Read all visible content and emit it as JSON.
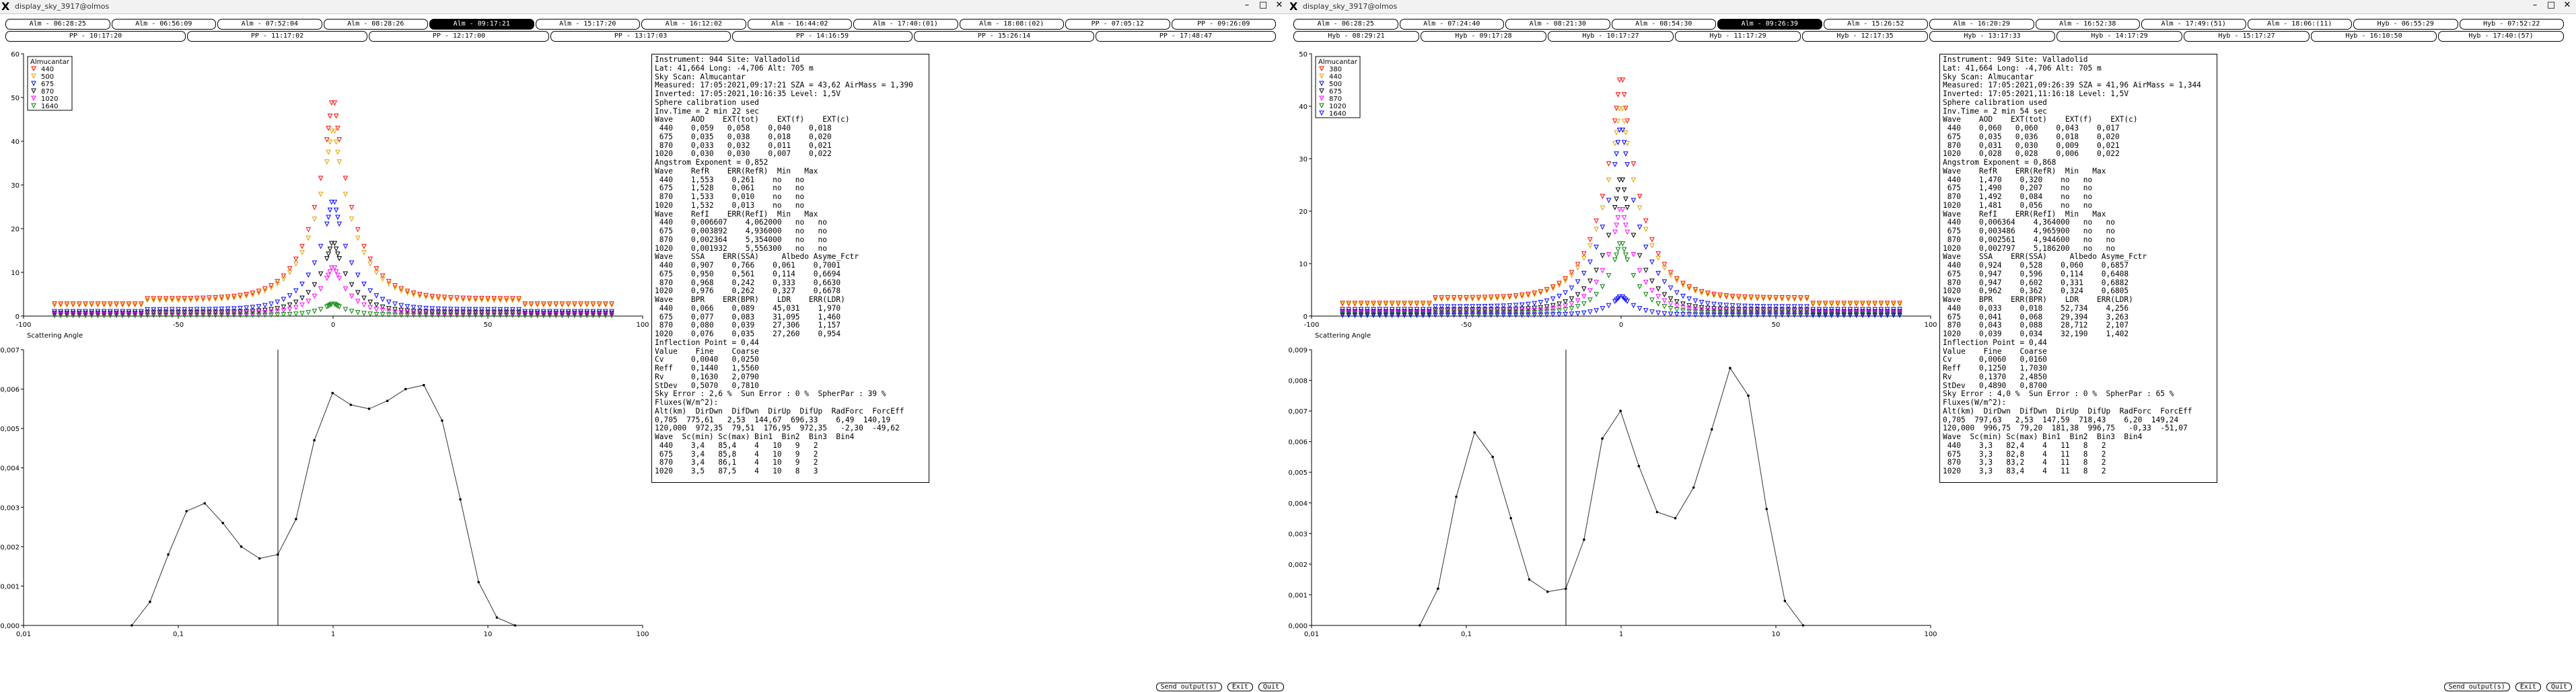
{
  "colors": {
    "440": "#ff0000",
    "500": "#e0a000",
    "675": "#0000ff",
    "870": "#000000",
    "1020": "#ff00ff",
    "1640": "#008000",
    "active_tab_bg": "#000000"
  },
  "windows": [
    {
      "title": "display_sky_3917@olmos",
      "tab_rows": [
        [
          "Alm - 06:28:25",
          "Alm - 06:56:09",
          "Alm - 07:52:04",
          "Alm - 08:28:26",
          "Alm - 09:17:21",
          "Alm - 15:17:20",
          "Alm - 16:12:02",
          "Alm - 16:44:02",
          "Alm - 17:40:(01)",
          "Alm - 18:08:(02)",
          "PP - 07:05:12",
          "PP - 09:26:09"
        ],
        [
          "PP - 10:17:20",
          "PP - 11:17:02",
          "PP - 12:17:00",
          "PP - 13:17:03",
          "PP - 14:16:59",
          "PP - 15:26:14",
          "PP - 17:48:47"
        ]
      ],
      "active_tab": "Alm - 09:17:21",
      "panel_lines": [
        "Instrument: 944 Site: Valladolid",
        "Lat: 41,664 Long: -4,706 Alt: 705 m",
        "Sky Scan: Almucantar",
        "Measured: 17:05:2021,09:17:21 SZA = 43,62 AirMass = 1,390",
        "Inverted: 17:05:2021,10:16:35 Level: 1,5V",
        "Sphere calibration used",
        "Inv.Time = 2 min 22 sec",
        "Wave    AOD    EXT(tot)    EXT(f)    EXT(c)",
        " 440    0,059   0,058    0,040    0,018",
        " 675    0,035   0,038    0,018    0,020",
        " 870    0,033   0,032    0,011    0,021",
        "1020    0,030   0,030    0,007    0,022",
        "Angstrom Exponent = 0,852",
        "Wave    RefR    ERR(RefR)  Min   Max",
        " 440    1,553    0,261    no   no",
        " 675    1,528    0,061    no   no",
        " 870    1,533    0,010    no   no",
        "1020    1,532    0,013    no   no",
        "Wave    RefI    ERR(RefI)  Min   Max",
        " 440    0,006607    4,062000   no   no",
        " 675    0,003892    4,936000   no   no",
        " 870    0,002364    5,354000   no   no",
        "1020    0,001932    5,556300   no   no",
        "Wave    SSA    ERR(SSA)     Albedo Asyme_Fctr",
        " 440    0,907    0,766    0,061    0,7001",
        " 675    0,950    0,561    0,114    0,6694",
        " 870    0,968    0,242    0,333    0,6630",
        "1020    0,976    0,262    0,327    0,6678",
        "Wave    BPR    ERR(BPR)    LDR    ERR(LDR)",
        " 440    0,066    0,089    45,031    1,970",
        " 675    0,077    0,083    31,095    1,460",
        " 870    0,080    0,039    27,306    1,157",
        "1020    0,076    0,035    27,260    0,954",
        "Inflection Point = 0,44",
        "Value    Fine    Coarse",
        "Cv      0,0040   0,0250",
        "Reff    0,1440   1,5560",
        "Rv      0,1630   2,0790",
        "StDev   0,5070   0,7810",
        "Sky Error : 2,6 %  Sun Error : 0 %  SpherPar : 39 %",
        "Fluxes(W/m^2):",
        "Alt(km)  DirDwn  DifDwn  DirUp  DifUp  RadForc  ForcEff",
        "0,705  775,61   2,53  144,67  696,33    6,49  140,19",
        "120,000  972,35  79,51  176,95  972,35   -2,30  -49,62",
        "Wave  Sc(min) Sc(max) Bin1  Bin2  Bin3  Bin4",
        " 440    3,4   85,4    4   10   9   2",
        " 675    3,4   85,8    4   10   9   2",
        " 870    3,4   86,1    4   10   9   2",
        "1020    3,5   87,5    4   10   8   3"
      ],
      "bottom_buttons": [
        "Send output(s)",
        "Exit",
        "Quit"
      ]
    },
    {
      "title": "display_sky_3917@olmos",
      "tab_rows": [
        [
          "Alm - 06:28:25",
          "Alm - 07:24:40",
          "Alm - 08:21:30",
          "Alm - 08:54:30",
          "Alm - 09:26:39",
          "Alm - 15:26:52",
          "Alm - 16:20:29",
          "Alm - 16:52:38",
          "Alm - 17:49:(51)",
          "Alm - 18:06:(11)",
          "Hyb - 06:55:29",
          "Hyb - 07:52:22"
        ],
        [
          "Hyb - 08:29:21",
          "Hyb - 09:17:28",
          "Hyb - 10:17:27",
          "Hyb - 11:17:29",
          "Hyb - 12:17:35",
          "Hyb - 13:17:33",
          "Hyb - 14:17:29",
          "Hyb - 15:17:27",
          "Hyb - 16:10:50",
          "Hyb - 17:40:(57)"
        ]
      ],
      "active_tab": "Alm - 09:26:39",
      "panel_lines": [
        "Instrument: 949 Site: Valladolid",
        "Lat: 41,664 Long: -4,706 Alt: 705 m",
        "Sky Scan: Almucantar",
        "Measured: 17:05:2021,09:26:39 SZA = 41,96 AirMass = 1,344",
        "Inverted: 17:05:2021,11:16:18 Level: 1,5V",
        "Sphere calibration used",
        "Inv.Time = 2 min 54 sec",
        "Wave    AOD    EXT(tot)    EXT(f)    EXT(c)",
        " 440    0,060   0,060    0,043    0,017",
        " 675    0,035   0,036    0,018    0,020",
        " 870    0,031   0,030    0,009    0,021",
        "1020    0,028   0,028    0,006    0,022",
        "Angstrom Exponent = 0,868",
        "Wave    RefR    ERR(RefR)  Min   Max",
        " 440    1,470    0,320    no   no",
        " 675    1,490    0,207    no   no",
        " 870    1,492    0,084    no   no",
        "1020    1,481    0,056    no   no",
        "Wave    RefI    ERR(RefI)  Min   Max",
        " 440    0,006364    4,364000   no   no",
        " 675    0,003486    4,965900   no   no",
        " 870    0,002561    4,944600   no   no",
        "1020    0,002797    5,186200   no   no",
        "Wave    SSA    ERR(SSA)     Albedo Asyme_Fctr",
        " 440    0,924    0,528    0,060    0,6857",
        " 675    0,947    0,596    0,114    0,6408",
        " 870    0,947    0,602    0,331    0,6882",
        "1020    0,962    0,362    0,324    0,6805",
        "Wave    BPR    ERR(BPR)    LDR    ERR(LDR)",
        " 440    0,033    0,018    52,734    4,256",
        " 675    0,041    0,068    29,394    3,263",
        " 870    0,043    0,088    28,712    2,107",
        "1020    0,039    0,034    32,190    1,402",
        "Inflection Point = 0,44",
        "Value    Fine    Coarse",
        "Cv      0,0060   0,0160",
        "Reff    0,1250   1,7030",
        "Rv      0,1370   2,4850",
        "StDev   0,4890   0,8700",
        "Sky Error : 4,0 %  Sun Error : 0 %  SpherPar : 65 %",
        "Fluxes(W/m^2):",
        "Alt(km)  DirDwn  DifDwn  DirUp  DifUp  RadForc  ForcEff",
        "0,705  797,63   2,53  147,59  718,43    6,20  149,24",
        "120,000  996,75  79,20  181,38  996,75   -0,33  -51,07",
        "Wave  Sc(min) Sc(max) Bin1  Bin2  Bin3  Bin4",
        " 440    3,3   82,4    4   11   8   2",
        " 675    3,3   82,8    4   11   8   2",
        " 870    3,3   83,2    4   11   8   2",
        "1020    3,3   83,4    4   11   8   2"
      ],
      "bottom_buttons": [
        "Send output(s)",
        "Exit",
        "Quit"
      ]
    }
  ],
  "chart_data": [
    {
      "type": "scatter",
      "xlabel": "Scattering Angle",
      "ylabel": "",
      "xlim": [
        -100,
        100
      ],
      "ylim": [
        0,
        60
      ],
      "xticks": [
        -100,
        -50,
        0,
        50,
        100
      ],
      "yticks": [
        0,
        10,
        20,
        30,
        40,
        50,
        60
      ],
      "legend_title": "Almucantar",
      "legend_placement": "top-left",
      "series": [
        {
          "name": "440",
          "color": "#ff0000",
          "peak": 52,
          "floor": 4,
          "width": 2.4
        },
        {
          "name": "500",
          "color": "#e0a000",
          "peak": 45,
          "floor": 3.6,
          "width": 2.5
        },
        {
          "name": "675",
          "color": "#0000ff",
          "peak": 28,
          "floor": 1.5,
          "width": 2.2
        },
        {
          "name": "870",
          "color": "#000000",
          "peak": 18,
          "floor": 0.9,
          "width": 2.0
        },
        {
          "name": "1020",
          "color": "#ff00ff",
          "peak": 12,
          "floor": 0.6,
          "width": 1.9
        },
        {
          "name": "1640",
          "color": "#008000",
          "peak": 3,
          "floor": 0.2,
          "width": 1.8
        }
      ]
    },
    {
      "type": "line",
      "xlabel": "",
      "ylabel": "",
      "xscale": "log",
      "xlim": [
        0.01,
        100
      ],
      "ylim": [
        0,
        0.007
      ],
      "xticks": [
        0.01,
        0.1,
        1,
        10,
        100
      ],
      "xticklabels": [
        "0,01",
        "0,1",
        "1",
        "10",
        "100"
      ],
      "yticks": [
        0,
        0.001,
        0.002,
        0.003,
        0.004,
        0.005,
        0.006,
        0.007
      ],
      "yticklabels": [
        "0,000",
        "0,001",
        "0,002",
        "0,003",
        "0,004",
        "0,005",
        "0,006",
        "0,007"
      ],
      "inflection_point": 0.44,
      "x": [
        0.05,
        0.0656,
        0.0861,
        0.113,
        0.148,
        0.194,
        0.255,
        0.335,
        0.439,
        0.576,
        0.756,
        0.992,
        1.302,
        1.708,
        2.241,
        2.94,
        3.857,
        5.06,
        6.638,
        8.71,
        11.43,
        15.0
      ],
      "values": [
        0.0,
        0.0006,
        0.0018,
        0.0029,
        0.0031,
        0.0026,
        0.002,
        0.0017,
        0.0018,
        0.0027,
        0.0047,
        0.0059,
        0.0056,
        0.0055,
        0.0057,
        0.006,
        0.0061,
        0.0052,
        0.0032,
        0.0011,
        0.0002,
        0.0
      ]
    },
    {
      "type": "scatter",
      "xlabel": "Scattering Angle",
      "ylabel": "",
      "xlim": [
        -100,
        100
      ],
      "ylim": [
        0,
        50
      ],
      "xticks": [
        -100,
        -50,
        0,
        50,
        100
      ],
      "yticks": [
        0,
        10,
        20,
        30,
        40,
        50
      ],
      "legend_title": "Almucantar",
      "legend_placement": "top-left",
      "series": [
        {
          "name": "380",
          "color": "#ff0000",
          "peak": 48,
          "floor": 3.5,
          "width": 2.4
        },
        {
          "name": "440",
          "color": "#e0a000",
          "peak": 42,
          "floor": 3.2,
          "width": 2.5
        },
        {
          "name": "500",
          "color": "#0000ff",
          "peak": 38,
          "floor": 1.8,
          "width": 2.3
        },
        {
          "name": "675",
          "color": "#000000",
          "peak": 28,
          "floor": 1.2,
          "width": 2.1
        },
        {
          "name": "870",
          "color": "#ff00ff",
          "peak": 22,
          "floor": 0.9,
          "width": 2.0
        },
        {
          "name": "1020",
          "color": "#008000",
          "peak": 15,
          "floor": 0.6,
          "width": 1.9
        },
        {
          "name": "1640",
          "color": "#0000ff",
          "peak": 4,
          "floor": 0.2,
          "width": 1.8
        }
      ]
    },
    {
      "type": "line",
      "xlabel": "",
      "ylabel": "",
      "xscale": "log",
      "xlim": [
        0.01,
        100
      ],
      "ylim": [
        0,
        0.009
      ],
      "xticks": [
        0.01,
        0.1,
        1,
        10,
        100
      ],
      "xticklabels": [
        "0,01",
        "0,1",
        "1",
        "10",
        "100"
      ],
      "yticks": [
        0,
        0.001,
        0.002,
        0.003,
        0.004,
        0.005,
        0.006,
        0.007,
        0.008,
        0.009
      ],
      "yticklabels": [
        "0,000",
        "0,001",
        "0,002",
        "0,003",
        "0,004",
        "0,005",
        "0,006",
        "0,007",
        "0,008",
        "0,009"
      ],
      "inflection_point": 0.44,
      "x": [
        0.05,
        0.0656,
        0.0861,
        0.113,
        0.148,
        0.194,
        0.255,
        0.335,
        0.439,
        0.576,
        0.756,
        0.992,
        1.302,
        1.708,
        2.241,
        2.94,
        3.857,
        5.06,
        6.638,
        8.71,
        11.43,
        15.0
      ],
      "values": [
        0.0,
        0.0012,
        0.0042,
        0.0063,
        0.0055,
        0.0035,
        0.0015,
        0.0011,
        0.0012,
        0.0028,
        0.0061,
        0.007,
        0.0052,
        0.0037,
        0.0035,
        0.0045,
        0.0064,
        0.0084,
        0.0075,
        0.0038,
        0.0008,
        0.0
      ]
    }
  ]
}
